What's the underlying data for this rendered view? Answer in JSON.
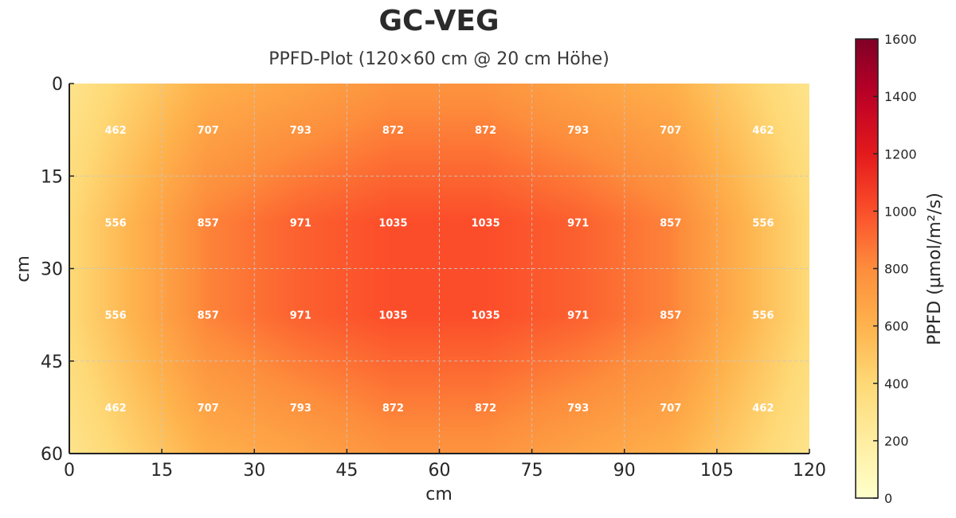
{
  "chart_data": {
    "type": "heatmap",
    "title": "GC-VEG",
    "subtitle": "PPFD-Plot (120×60 cm @ 20 cm Höhe)",
    "xlabel": "cm",
    "ylabel": "cm",
    "xlim": [
      0,
      120
    ],
    "ylim": [
      60,
      0
    ],
    "xticks": [
      0,
      15,
      30,
      45,
      60,
      75,
      90,
      105,
      120
    ],
    "yticks": [
      0,
      15,
      30,
      45,
      60
    ],
    "grid": true,
    "x_centers": [
      7.5,
      22.5,
      37.5,
      52.5,
      67.5,
      82.5,
      97.5,
      112.5
    ],
    "y_centers": [
      7.5,
      22.5,
      37.5,
      52.5
    ],
    "values": [
      [
        462,
        707,
        793,
        872,
        872,
        793,
        707,
        462
      ],
      [
        556,
        857,
        971,
        1035,
        1035,
        971,
        857,
        556
      ],
      [
        556,
        857,
        971,
        1035,
        1035,
        971,
        857,
        556
      ],
      [
        462,
        707,
        793,
        872,
        872,
        793,
        707,
        462
      ]
    ],
    "colormap": "YlOrRd",
    "colorbar": {
      "label": "PPFD (µmol/m²/s)",
      "range": [
        0,
        1600
      ],
      "ticks": [
        0,
        200,
        400,
        600,
        800,
        1000,
        1200,
        1400,
        1600
      ],
      "placement": "right"
    }
  }
}
